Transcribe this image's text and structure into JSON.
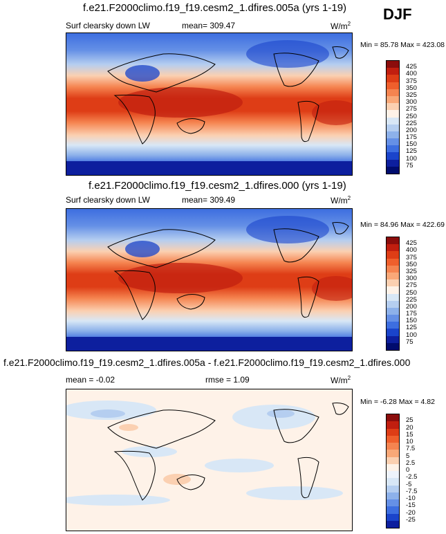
{
  "season": "DJF",
  "panels": [
    {
      "title": "f.e21.F2000climo.f19_f19.cesm2_1.dfires.005a (yrs 1-19)",
      "variable": "Surf clearsky down LW",
      "stat": "mean= 309.47",
      "units": "W/m",
      "units_sup": "2",
      "minmax": "Min = 85.78 Max = 423.08",
      "levels": [
        "425",
        "400",
        "375",
        "350",
        "325",
        "300",
        "275",
        "250",
        "225",
        "200",
        "175",
        "150",
        "125",
        "100",
        "75"
      ],
      "colors": [
        "#8b0d0c",
        "#c11e0f",
        "#de3d16",
        "#ef5f2c",
        "#f58450",
        "#f9a878",
        "#fbd0b1",
        "#fef2e8",
        "#d8e7f6",
        "#b5cef0",
        "#8db1ea",
        "#6590e6",
        "#3d6ee0",
        "#1a44cb",
        "#0d1f9e",
        "#000c6e"
      ]
    },
    {
      "title": "f.e21.F2000climo.f19_f19.cesm2_1.dfires.000 (yrs 1-19)",
      "variable": "Surf clearsky down LW",
      "stat": "mean= 309.49",
      "units": "W/m",
      "units_sup": "2",
      "minmax": "Min = 84.96 Max = 422.69",
      "levels": [
        "425",
        "400",
        "375",
        "350",
        "325",
        "300",
        "275",
        "250",
        "225",
        "200",
        "175",
        "150",
        "125",
        "100",
        "75"
      ],
      "colors": [
        "#8b0d0c",
        "#c11e0f",
        "#de3d16",
        "#ef5f2c",
        "#f58450",
        "#f9a878",
        "#fbd0b1",
        "#fef2e8",
        "#d8e7f6",
        "#b5cef0",
        "#8db1ea",
        "#6590e6",
        "#3d6ee0",
        "#1a44cb",
        "#0d1f9e",
        "#000c6e"
      ]
    },
    {
      "title": "f.e21.F2000climo.f19_f19.cesm2_1.dfires.005a - f.e21.F2000climo.f19_f19.cesm2_1.dfires.000",
      "stat1": "mean =  -0.02",
      "stat2": "rmse =   1.09",
      "units": "W/m",
      "units_sup": "2",
      "minmax": "Min =  -6.28 Max =   4.82",
      "levels": [
        "25",
        "20",
        "15",
        "10",
        "7.5",
        "5",
        "2.5",
        "0",
        "-2.5",
        "-5",
        "-7.5",
        "-10",
        "-15",
        "-20",
        "-25"
      ],
      "colors": [
        "#8b0d0c",
        "#c11e0f",
        "#de3d16",
        "#ef5f2c",
        "#f58450",
        "#f9a878",
        "#fbd0b1",
        "#fef2e8",
        "#eef3fb",
        "#d8e7f6",
        "#b5cef0",
        "#8db1ea",
        "#6590e6",
        "#3d6ee0",
        "#1a44cb",
        "#0d1f9e"
      ]
    }
  ]
}
